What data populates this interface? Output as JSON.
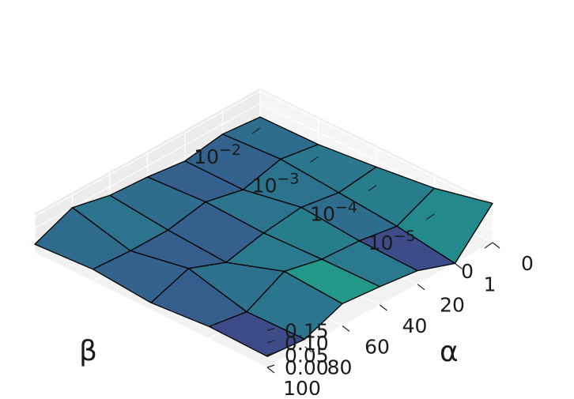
{
  "chart_data": {
    "type": "surface3d",
    "title": "",
    "colormap": "viridis",
    "xlabel": "β",
    "ylabel": "α",
    "zlabel": "",
    "beta_ticks": [
      {
        "base": "10",
        "exp": "−2"
      },
      {
        "base": "10",
        "exp": "−3"
      },
      {
        "base": "10",
        "exp": "−4"
      },
      {
        "base": "10",
        "exp": "−5"
      },
      {
        "base": "0",
        "exp": ""
      }
    ],
    "alpha_ticks": [
      "0",
      "1",
      "20",
      "40",
      "60",
      "80",
      "100"
    ],
    "z_ticks": [
      "0.00",
      "0.05",
      "0.10",
      "0.15"
    ],
    "zlim": [
      0.0,
      0.16
    ],
    "z_values": [
      [
        0.045,
        0.03,
        0.09,
        0.075,
        0.055,
        0.0,
        0.16
      ],
      [
        0.05,
        0.025,
        0.105,
        0.07,
        0.06,
        0.035,
        0.105
      ],
      [
        0.03,
        0.085,
        0.025,
        0.06,
        0.08,
        0.055,
        0.075
      ],
      [
        0.05,
        0.04,
        0.04,
        0.07,
        0.035,
        0.075,
        0.05
      ],
      [
        0.035,
        0.1,
        0.065,
        0.055,
        0.035,
        0.06,
        0.045
      ]
    ],
    "grid": true
  }
}
